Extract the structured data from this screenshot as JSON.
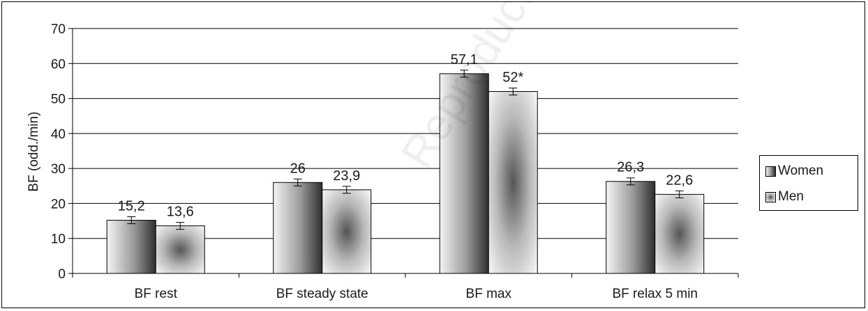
{
  "chart_data": {
    "type": "bar",
    "title": "",
    "xlabel": "",
    "ylabel": "BF (odd./min)",
    "ylim": [
      0,
      70
    ],
    "yticks": [
      0,
      10,
      20,
      30,
      40,
      50,
      60,
      70
    ],
    "grid": true,
    "legend_position": "right",
    "categories": [
      "BF rest",
      "BF steady state",
      "BF max",
      "BF relax 5 min"
    ],
    "series": [
      {
        "name": "Women",
        "values": [
          15.2,
          26,
          57.1,
          26.3
        ],
        "labels": [
          "15,2",
          "26",
          "57,1",
          "26,3"
        ],
        "error": [
          1.0,
          1.0,
          1.0,
          1.0
        ],
        "color": "#6e6e6e"
      },
      {
        "name": "Men",
        "values": [
          13.6,
          23.9,
          52,
          22.6
        ],
        "labels": [
          "13,6",
          "23,9",
          "52*",
          "22,6"
        ],
        "error": [
          1.0,
          1.0,
          1.0,
          1.0
        ],
        "color": "#9a9a9a"
      }
    ]
  },
  "watermark": "Reproduction prohibited."
}
